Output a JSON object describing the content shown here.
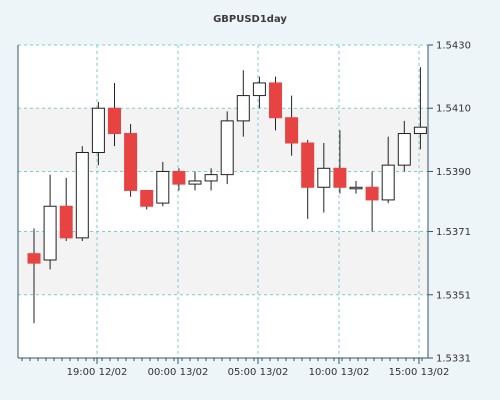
{
  "chart_data": {
    "type": "candlestick",
    "title": "GBPUSD1day",
    "colors": {
      "up_fill": "#ffffff",
      "down_fill": "#e84343",
      "candle_border": "#222222",
      "grid": "#7fcccc",
      "axis": "#335566",
      "background": "#eef5f8",
      "plot_bg": "#ffffff",
      "band_bg": "#f3f3f3"
    },
    "ylim": [
      1.5331,
      1.543
    ],
    "y_ticks": [
      "1.5430",
      "1.5410",
      "1.5390",
      "1.5371",
      "1.5351",
      "1.5331"
    ],
    "x_ticks": [
      "19:00 12/02",
      "00:00 13/02",
      "05:00 13/02",
      "10:00 13/02",
      "15:00 13/02"
    ],
    "candles": [
      {
        "open": 1.5364,
        "high": 1.5372,
        "low": 1.5342,
        "close": 1.5361
      },
      {
        "open": 1.5362,
        "high": 1.5389,
        "low": 1.5359,
        "close": 1.5379
      },
      {
        "open": 1.5379,
        "high": 1.5388,
        "low": 1.5368,
        "close": 1.5369
      },
      {
        "open": 1.5369,
        "high": 1.5398,
        "low": 1.5368,
        "close": 1.5396
      },
      {
        "open": 1.5396,
        "high": 1.5412,
        "low": 1.5392,
        "close": 1.541
      },
      {
        "open": 1.541,
        "high": 1.5418,
        "low": 1.5398,
        "close": 1.5402
      },
      {
        "open": 1.5402,
        "high": 1.5405,
        "low": 1.5382,
        "close": 1.5384
      },
      {
        "open": 1.5384,
        "high": 1.5384,
        "low": 1.5378,
        "close": 1.5379
      },
      {
        "open": 1.538,
        "high": 1.5393,
        "low": 1.5379,
        "close": 1.539
      },
      {
        "open": 1.539,
        "high": 1.5391,
        "low": 1.5384,
        "close": 1.5386
      },
      {
        "open": 1.5386,
        "high": 1.539,
        "low": 1.5384,
        "close": 1.5387
      },
      {
        "open": 1.5387,
        "high": 1.5391,
        "low": 1.5384,
        "close": 1.5389
      },
      {
        "open": 1.5389,
        "high": 1.5409,
        "low": 1.5386,
        "close": 1.5406
      },
      {
        "open": 1.5406,
        "high": 1.5422,
        "low": 1.5401,
        "close": 1.5414
      },
      {
        "open": 1.5414,
        "high": 1.542,
        "low": 1.541,
        "close": 1.5418
      },
      {
        "open": 1.5418,
        "high": 1.542,
        "low": 1.5403,
        "close": 1.5407
      },
      {
        "open": 1.5407,
        "high": 1.5414,
        "low": 1.5395,
        "close": 1.5399
      },
      {
        "open": 1.5399,
        "high": 1.54,
        "low": 1.5375,
        "close": 1.5385
      },
      {
        "open": 1.5385,
        "high": 1.5399,
        "low": 1.5377,
        "close": 1.5391
      },
      {
        "open": 1.5391,
        "high": 1.5403,
        "low": 1.5383,
        "close": 1.5385
      },
      {
        "open": 1.5385,
        "high": 1.5387,
        "low": 1.5383,
        "close": 1.5385
      },
      {
        "open": 1.5385,
        "high": 1.539,
        "low": 1.5371,
        "close": 1.5381
      },
      {
        "open": 1.5381,
        "high": 1.5401,
        "low": 1.538,
        "close": 1.5392
      },
      {
        "open": 1.5392,
        "high": 1.5406,
        "low": 1.539,
        "close": 1.5402
      },
      {
        "open": 1.5402,
        "high": 1.5423,
        "low": 1.5397,
        "close": 1.5404
      }
    ]
  }
}
